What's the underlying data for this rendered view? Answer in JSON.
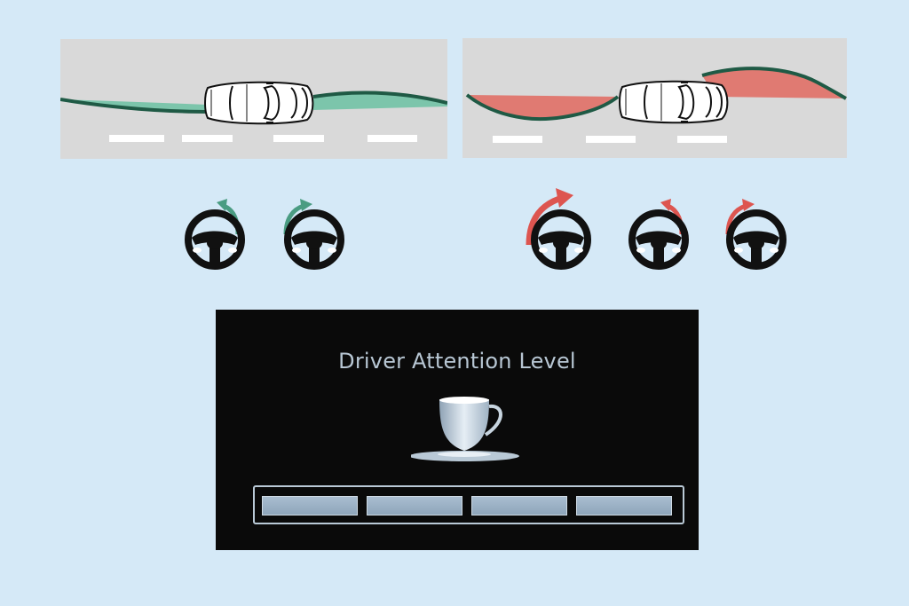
{
  "scenes": [
    {
      "name": "steady-driving",
      "path_color": "#1f5a45",
      "fill_color": "#7cc5ab"
    },
    {
      "name": "weaving-driving",
      "path_color": "#1f5a45",
      "fill_color": "#e07a72"
    }
  ],
  "wheels": {
    "steady": [
      {
        "arrow": "left",
        "color": "#4a9c82"
      },
      {
        "arrow": "right",
        "color": "#4a9c82"
      }
    ],
    "weaving": [
      {
        "arrow": "right",
        "color": "#dd5550"
      },
      {
        "arrow": "left",
        "color": "#dd5550"
      },
      {
        "arrow": "right",
        "color": "#dd5550"
      }
    ]
  },
  "display": {
    "title": "Driver Attention Level",
    "icon": "coffee-cup-icon",
    "attention_level": {
      "filled_segments": 4,
      "total_segments": 4
    }
  }
}
